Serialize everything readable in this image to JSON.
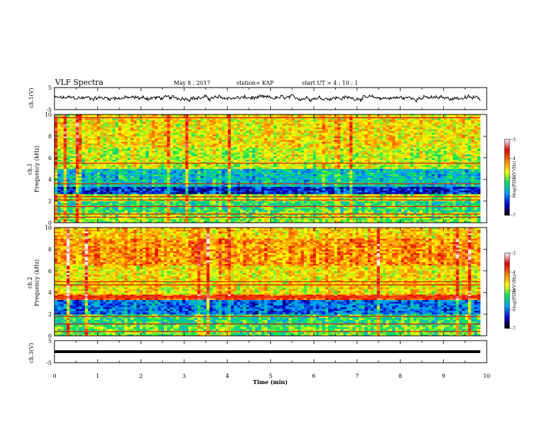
{
  "header": {
    "title": "VLF Spectra",
    "date": "May 8 , 2017",
    "station": "station= KAP",
    "start": "start UT =  4 : 10 : 1"
  },
  "colorbar": {
    "label": "log(PSD)(V²/Hz)",
    "ticks": [
      "-3",
      "-4",
      "-5",
      "-6",
      "-7"
    ]
  },
  "chart_data": [
    {
      "type": "line",
      "name": "ch1-voltage",
      "ylabel": "ch.1(V)",
      "ylim": [
        -5,
        5
      ],
      "yticks": [
        "5",
        "-5"
      ],
      "xlim": [
        0,
        10
      ],
      "x_start": 0,
      "x_end": 9.85,
      "approx_mean": 0.3,
      "approx_amplitude": 1.3,
      "line_color": "#000000"
    },
    {
      "type": "heatmap",
      "name": "ch1-spectrogram",
      "ylabel": "ch.1",
      "ylabel2": "Frequency (kHz)",
      "ylim": [
        0,
        10
      ],
      "yticks": [
        "0",
        "2",
        "4",
        "6",
        "8",
        "10"
      ],
      "xlim": [
        0,
        10
      ],
      "x_end": 9.85,
      "color_scale": [
        -7,
        -3
      ],
      "colormap": [
        "#000000",
        "#0000c8",
        "#00a0ff",
        "#00e060",
        "#ffff00",
        "#ff8000",
        "#e00000",
        "#ffffff"
      ],
      "bands": [
        {
          "fmin": 0.0,
          "fmax": 1.0,
          "level": -5.0
        },
        {
          "fmin": 1.0,
          "fmax": 2.0,
          "level": -5.3
        },
        {
          "fmin": 2.0,
          "fmax": 2.6,
          "level": -4.9
        },
        {
          "fmin": 2.6,
          "fmax": 3.4,
          "level": -6.3
        },
        {
          "fmin": 3.4,
          "fmax": 5.0,
          "level": -5.6
        },
        {
          "fmin": 5.0,
          "fmax": 7.0,
          "level": -4.8
        },
        {
          "fmin": 7.0,
          "fmax": 10.0,
          "level": -4.6
        }
      ],
      "lines_khz": [
        0.5,
        0.8,
        1.5,
        2.1,
        2.4,
        3.6,
        5.5,
        9.7
      ]
    },
    {
      "type": "heatmap",
      "name": "ch2-spectrogram",
      "ylabel": "ch.2",
      "ylabel2": "Frequency (kHz)",
      "ylim": [
        0,
        10
      ],
      "yticks": [
        "0",
        "2",
        "4",
        "6",
        "8",
        "10"
      ],
      "xlim": [
        0,
        10
      ],
      "x_end": 9.85,
      "color_scale": [
        -7,
        -3
      ],
      "colormap": [
        "#000000",
        "#0000c8",
        "#00a0ff",
        "#00e060",
        "#ffff00",
        "#ff8000",
        "#e00000",
        "#ffffff"
      ],
      "bands": [
        {
          "fmin": 0.0,
          "fmax": 1.0,
          "level": -5.1
        },
        {
          "fmin": 1.0,
          "fmax": 2.0,
          "level": -5.3
        },
        {
          "fmin": 2.0,
          "fmax": 3.3,
          "level": -6.0
        },
        {
          "fmin": 3.3,
          "fmax": 3.8,
          "level": -3.9
        },
        {
          "fmin": 3.8,
          "fmax": 6.5,
          "level": -4.6
        },
        {
          "fmin": 6.5,
          "fmax": 9.0,
          "level": -4.2
        },
        {
          "fmin": 9.0,
          "fmax": 10.0,
          "level": -4.5
        }
      ],
      "lines_khz": [
        0.4,
        1.1,
        1.8,
        3.5,
        3.65,
        4.7,
        5.0
      ]
    },
    {
      "type": "line",
      "name": "ch3-voltage",
      "ylabel": "ch.3(V)",
      "ylim": [
        -5,
        5
      ],
      "yticks": [
        "5",
        "-5"
      ],
      "xlim": [
        0,
        10
      ],
      "x_start": 0,
      "x_end": 9.85,
      "constant_value": 0.0,
      "line_color": "#000000"
    }
  ],
  "xaxis": {
    "label": "Time (min)",
    "ticks": [
      "0",
      "1",
      "2",
      "3",
      "4",
      "5",
      "6",
      "7",
      "8",
      "9",
      "10"
    ]
  }
}
